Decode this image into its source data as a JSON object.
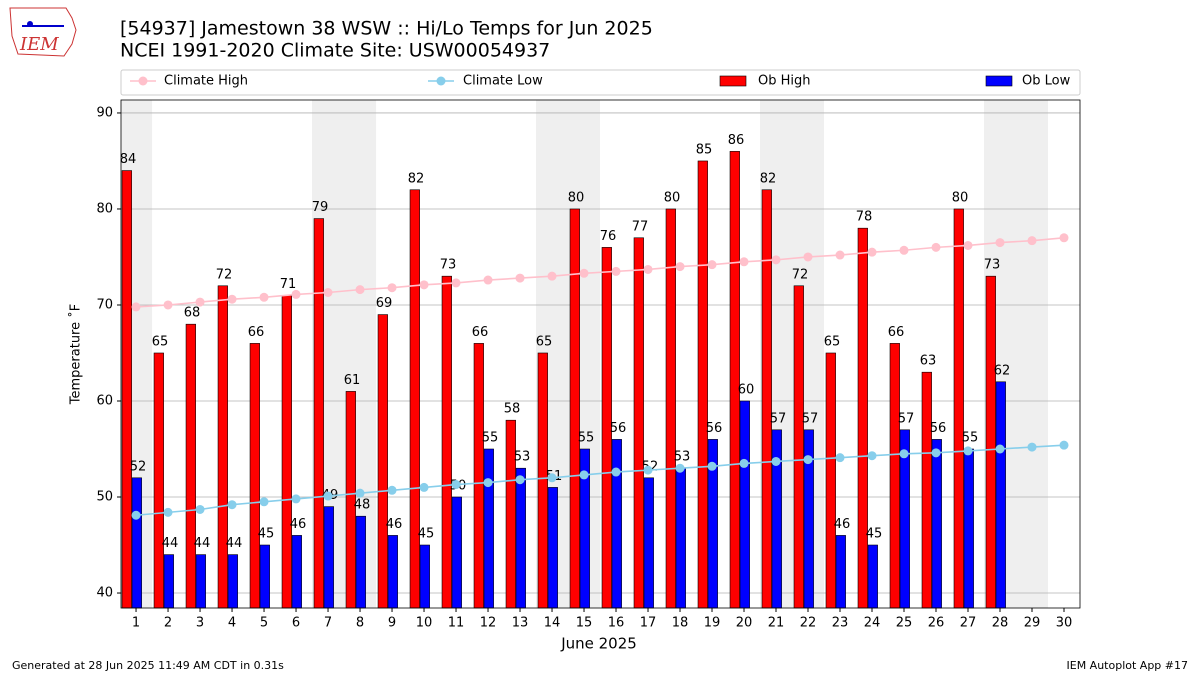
{
  "chart_data": {
    "type": "bar",
    "title": "[54937] Jamestown 38 WSW :: Hi/Lo Temps for Jun 2025",
    "subtitle": "NCEI 1991-2020 Climate Site: USW00054937",
    "y_label": "Temperature $^\\circ$F",
    "x_label": "June 2025",
    "footer_left": "Generated at 28 Jun 2025 11:49 AM CDT in 0.31s",
    "footer_right": "IEM Autoplot App #17",
    "logo": "IEM",
    "x": [
      1,
      2,
      3,
      4,
      5,
      6,
      7,
      8,
      9,
      10,
      11,
      12,
      13,
      14,
      15,
      16,
      17,
      18,
      19,
      20,
      21,
      22,
      23,
      24,
      25,
      26,
      27,
      28,
      29,
      30
    ],
    "xlim": [
      0.53,
      30.5
    ],
    "xticks": [
      1,
      2,
      3,
      4,
      5,
      6,
      7,
      8,
      9,
      10,
      11,
      12,
      13,
      14,
      15,
      16,
      17,
      18,
      19,
      20,
      21,
      22,
      23,
      24,
      25,
      26,
      27,
      28,
      29,
      30
    ],
    "ylim": [
      38.44,
      91.35
    ],
    "yticks": [
      40,
      50,
      60,
      70,
      80,
      90
    ],
    "grid": true,
    "legend": "top",
    "series": [
      {
        "name": "Climate High",
        "kind": "line",
        "color": "#ffc0cb",
        "values": [
          69.8,
          70.0,
          70.3,
          70.6,
          70.8,
          71.1,
          71.3,
          71.6,
          71.8,
          72.1,
          72.3,
          72.6,
          72.8,
          73.0,
          73.3,
          73.5,
          73.7,
          74.0,
          74.2,
          74.5,
          74.7,
          75.0,
          75.2,
          75.5,
          75.7,
          76.0,
          76.2,
          76.5,
          76.7,
          77.0
        ]
      },
      {
        "name": "Climate Low",
        "kind": "line",
        "color": "#87ceeb",
        "values": [
          48.1,
          48.4,
          48.7,
          49.2,
          49.5,
          49.8,
          50.1,
          50.4,
          50.7,
          51.0,
          51.3,
          51.5,
          51.8,
          52.0,
          52.3,
          52.6,
          52.8,
          53.0,
          53.2,
          53.5,
          53.7,
          53.9,
          54.1,
          54.3,
          54.5,
          54.6,
          54.8,
          55.0,
          55.2,
          55.4
        ]
      },
      {
        "name": "Ob High",
        "kind": "bar",
        "color": "#ff0000",
        "values": [
          84,
          65,
          68,
          72,
          66,
          71,
          79,
          61,
          69,
          82,
          73,
          66,
          58,
          65,
          80,
          76,
          77,
          80,
          85,
          86,
          82,
          72,
          65,
          78,
          66,
          63,
          80,
          73,
          null,
          null
        ]
      },
      {
        "name": "Ob Low",
        "kind": "bar",
        "color": "#0000ff",
        "values": [
          52,
          44,
          44,
          44,
          45,
          46,
          49,
          48,
          46,
          45,
          50,
          55,
          53,
          51,
          55,
          56,
          52,
          53,
          56,
          60,
          57,
          57,
          46,
          45,
          57,
          56,
          55,
          62,
          null,
          null
        ]
      }
    ]
  }
}
